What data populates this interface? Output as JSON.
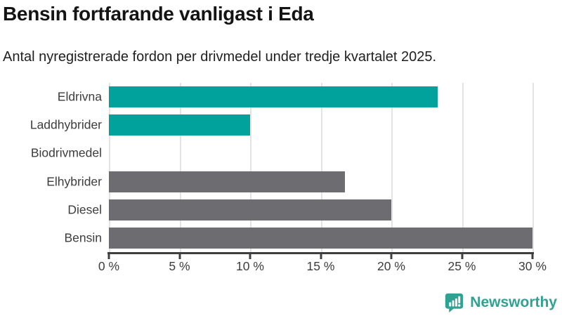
{
  "header": {
    "title": "Bensin fortfarande vanligast i Eda",
    "subtitle": "Antal nyregistrerade fordon per drivmedel under tredje kvartalet 2025."
  },
  "chart_data": {
    "type": "bar",
    "orientation": "horizontal",
    "categories": [
      "Eldrivna",
      "Laddhybrider",
      "Biodrivmedel",
      "Elhybrider",
      "Diesel",
      "Bensin"
    ],
    "values": [
      23.3,
      10,
      0,
      16.7,
      20,
      30
    ],
    "unit": "%",
    "bar_colors": [
      "#00a29b",
      "#00a29b",
      "#00a29b",
      "#6d6d71",
      "#6d6d71",
      "#6d6d71"
    ],
    "title": "Bensin fortfarande vanligast i Eda",
    "xlabel": "",
    "ylabel": "",
    "xlim": [
      0,
      30
    ],
    "xticks": [
      0,
      5,
      10,
      15,
      20,
      25,
      30
    ],
    "xtick_labels": [
      "0 %",
      "5 %",
      "10 %",
      "15 %",
      "20 %",
      "25 %",
      "30 %"
    ],
    "grid": true,
    "legend": false
  },
  "footer": {
    "brand": "Newsworthy",
    "logo_icon": "bar-chart-speech-bubble-icon"
  },
  "colors": {
    "accent_teal": "#00a29b",
    "bar_gray": "#6d6d71",
    "grid_line": "#e3e3e3",
    "axis_line": "#3f3f3f",
    "logo_teal": "#2fa294",
    "title_text": "#141414",
    "label_text": "#3d3d3d"
  }
}
